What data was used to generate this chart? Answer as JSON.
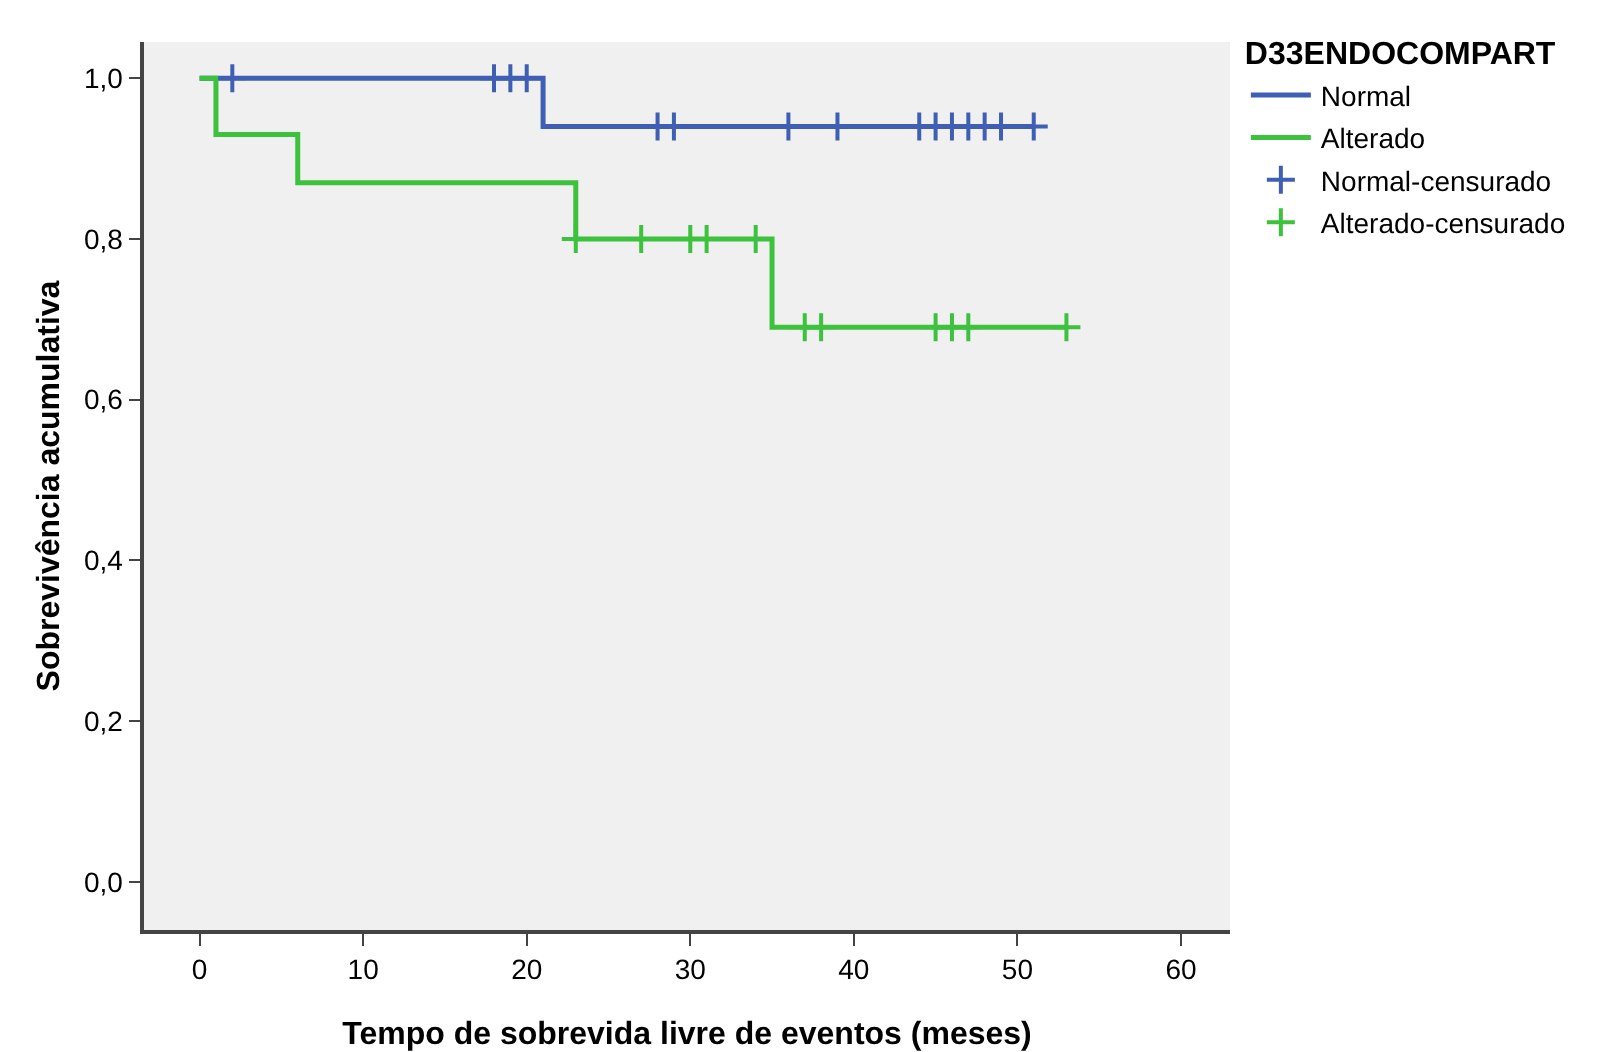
{
  "chart_data": {
    "type": "step",
    "xlabel": "Tempo de sobrevida livre de eventos (meses)",
    "ylabel": "Sobrevivência acumulativa",
    "legend_title": "D33ENDOCOMPART",
    "legend": "top right",
    "grid": false,
    "xlim": [
      -3.4,
      63
    ],
    "xticks": [
      0,
      10,
      20,
      30,
      40,
      50,
      60
    ],
    "ylim": [
      -0.06,
      1.045
    ],
    "yticks": [
      {
        "value": 0,
        "label": "0,0"
      },
      {
        "value": 0.2,
        "label": "0,2"
      },
      {
        "value": 0.4,
        "label": "0,4"
      },
      {
        "value": 0.6,
        "label": "0,6"
      },
      {
        "value": 0.8,
        "label": "0,8"
      },
      {
        "value": 1,
        "label": "1,0"
      }
    ],
    "series": [
      {
        "name": "Normal",
        "color": "#3f5fb5",
        "x": [
          0,
          21,
          51
        ],
        "values": [
          1,
          0.94,
          0.94
        ]
      },
      {
        "name": "Alterado",
        "color": "#3cc23c",
        "x": [
          0,
          1,
          6,
          23,
          35,
          53
        ],
        "values": [
          1,
          0.93,
          0.87,
          0.8,
          0.69,
          0.69
        ]
      },
      {
        "name": "Normal-censurado",
        "type": "scatter",
        "marker": "cross",
        "color": "#3f5fb5",
        "x": [
          2,
          18,
          19,
          20,
          28,
          29,
          36,
          39,
          44,
          45,
          46,
          47,
          48,
          49,
          51
        ],
        "values": [
          1,
          1,
          1,
          1,
          0.94,
          0.94,
          0.94,
          0.94,
          0.94,
          0.94,
          0.94,
          0.94,
          0.94,
          0.94,
          0.94
        ]
      },
      {
        "name": "Alterado-censurado",
        "type": "scatter",
        "marker": "cross",
        "color": "#3cc23c",
        "x": [
          23,
          27,
          30,
          31,
          34,
          37,
          38,
          45,
          46,
          47,
          53
        ],
        "values": [
          0.8,
          0.8,
          0.8,
          0.8,
          0.8,
          0.69,
          0.69,
          0.69,
          0.69,
          0.69,
          0.69
        ]
      }
    ]
  }
}
